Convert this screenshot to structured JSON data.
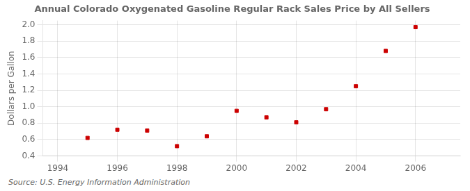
{
  "chart_data": {
    "type": "scatter",
    "title": "Annual Colorado Oxygenated Gasoline Regular Rack Sales Price by All Sellers",
    "y_label": "Dollars per Gallon",
    "annotations": [
      "Source: U.S. Energy Information Administration"
    ],
    "x": [
      1995,
      1996,
      1997,
      1998,
      1999,
      2000,
      2001,
      2002,
      2003,
      2004,
      2005,
      2006
    ],
    "values": [
      0.62,
      0.72,
      0.71,
      0.52,
      0.64,
      0.95,
      0.87,
      0.81,
      0.97,
      1.25,
      1.68,
      1.97
    ],
    "color": "#cc0000",
    "marker": "square",
    "xlim": [
      1993.5,
      2007.5
    ],
    "xticks": [
      1994,
      1996,
      1998,
      2000,
      2002,
      2004,
      2006
    ],
    "ylim": [
      0.4,
      2.05
    ],
    "yticks": [
      0.4,
      0.6,
      0.8,
      {
        "value": 1.0,
        "label": "1.0"
      },
      1.2,
      1.4,
      1.6,
      1.8,
      {
        "value": 2.0,
        "label": "2.0"
      }
    ],
    "grid": true
  }
}
